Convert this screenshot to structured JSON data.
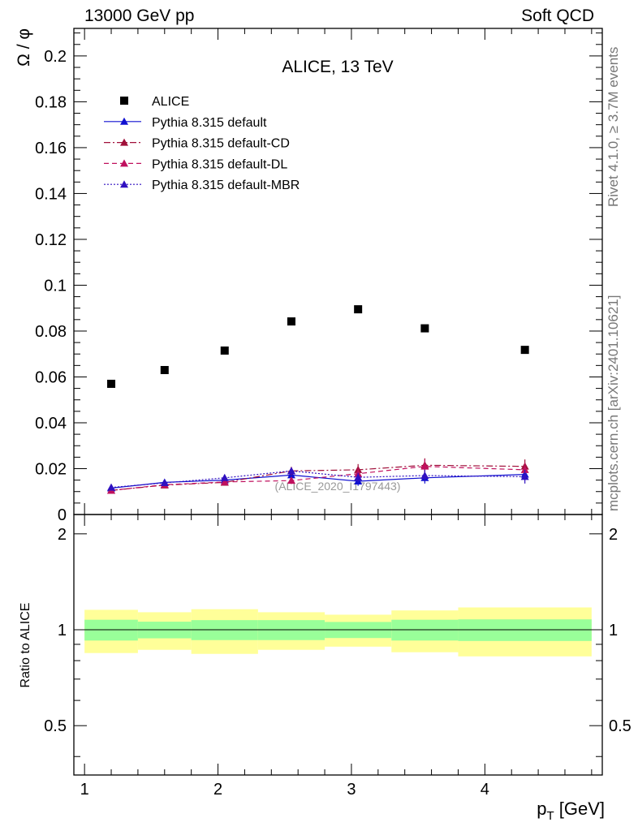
{
  "header": {
    "left": "13000 GeV pp",
    "right": "Soft QCD"
  },
  "side_labels": {
    "rivet": "Rivet 4.1.0, ≥ 3.7M events",
    "mcplots": "mcplots.cern.ch [arXiv:2401.10621]"
  },
  "chart_data": {
    "type": "scatter",
    "title": "ALICE, 13 TeV",
    "analysis_id": "(ALICE_2020_I1797443)",
    "xlabel": "p_T [GeV]",
    "ylabel": "Ω / φ",
    "ratio_ylabel": "Ratio to ALICE",
    "xlim": [
      0.92,
      4.88
    ],
    "ylim": [
      0,
      0.212
    ],
    "ratio_ylim": [
      0.35,
      2.3
    ],
    "x_ticks": [
      "1",
      "2",
      "3",
      "4"
    ],
    "y_ticks": [
      "0",
      "0.02",
      "0.04",
      "0.06",
      "0.08",
      "0.1",
      "0.12",
      "0.14",
      "0.16",
      "0.18",
      "0.2"
    ],
    "ratio_ticks": [
      "0.5",
      "1",
      "2"
    ],
    "x": [
      1.2,
      1.6,
      2.05,
      2.55,
      3.05,
      3.55,
      4.3
    ],
    "bin_edges": [
      1.0,
      1.4,
      1.8,
      2.3,
      2.8,
      3.3,
      3.8,
      4.8
    ],
    "series": [
      {
        "name": "ALICE",
        "values": [
          0.057,
          0.063,
          0.0715,
          0.0842,
          0.0895,
          0.0812,
          0.0718
        ],
        "color": "#000000",
        "style": "data"
      },
      {
        "name": "Pythia 8.315 default",
        "values": [
          0.0115,
          0.014,
          0.015,
          0.0172,
          0.0145,
          0.016,
          0.0175
        ],
        "errors": [
          0.0005,
          0.0006,
          0.0007,
          0.0015,
          0.002,
          0.0025,
          0.002
        ],
        "color": "#1010d0",
        "style": "solid"
      },
      {
        "name": "Pythia 8.315 default-CD",
        "values": [
          0.0105,
          0.0128,
          0.014,
          0.019,
          0.0195,
          0.0215,
          0.021
        ],
        "errors": [
          0.0005,
          0.0006,
          0.0007,
          0.0018,
          0.0025,
          0.003,
          0.003
        ],
        "color": "#a0103a",
        "style": "dashdot"
      },
      {
        "name": "Pythia 8.315 default-DL",
        "values": [
          0.0105,
          0.013,
          0.0142,
          0.0148,
          0.0178,
          0.021,
          0.0195
        ],
        "errors": [
          0.0005,
          0.0006,
          0.0007,
          0.0015,
          0.0025,
          0.003,
          0.003
        ],
        "color": "#c0105e",
        "style": "dashed"
      },
      {
        "name": "Pythia 8.315 default-MBR",
        "values": [
          0.0118,
          0.0138,
          0.016,
          0.019,
          0.0162,
          0.017,
          0.0165
        ],
        "errors": [
          0.0005,
          0.0006,
          0.0007,
          0.0015,
          0.002,
          0.0025,
          0.003
        ],
        "color": "#3010c0",
        "style": "dotted"
      }
    ],
    "ratio_bands": {
      "inner": [
        0.075,
        0.06,
        0.072,
        0.072,
        0.058,
        0.075,
        0.078
      ],
      "outer": [
        0.155,
        0.135,
        0.16,
        0.135,
        0.115,
        0.15,
        0.175
      ],
      "inner_color": "#99ff99",
      "outer_color": "#ffff99"
    },
    "legend_position": "top-left"
  }
}
